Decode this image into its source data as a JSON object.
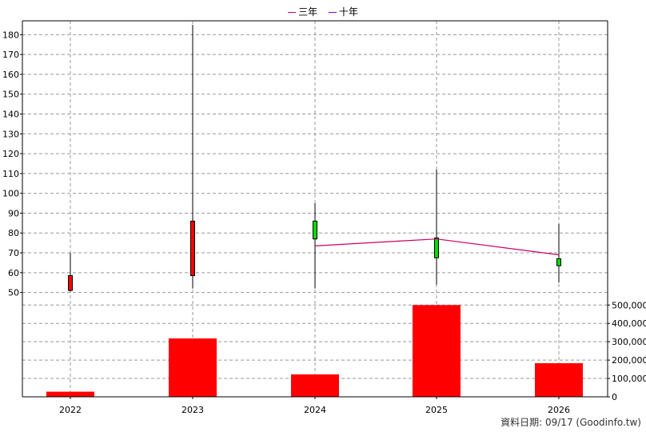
{
  "legend": [
    {
      "label": "三年",
      "color": "#cc0066"
    },
    {
      "label": "十年",
      "color": "#8800cc"
    }
  ],
  "footer": "資料日期: 09/17  (Goodinfo.tw)",
  "colors": {
    "up": "#ff0000",
    "down": "#00dd00",
    "volume": "#ff0000",
    "ma3": "#cc0066",
    "ma10": "#8800cc",
    "wick": "#000000",
    "grid": "#999999"
  },
  "chart_data": [
    {
      "type": "candlestick",
      "categories": [
        "2022",
        "2023",
        "2024",
        "2025",
        "2026"
      ],
      "ylim": [
        45,
        187
      ],
      "yticks": [
        50,
        60,
        70,
        80,
        90,
        100,
        110,
        120,
        130,
        140,
        150,
        160,
        170,
        180
      ],
      "grid": true,
      "ohlc": [
        {
          "x": "2022",
          "open": 51,
          "high": 70,
          "low": 50.5,
          "close": 58.5,
          "direction": "up"
        },
        {
          "x": "2023",
          "open": 58.5,
          "high": 185,
          "low": 52,
          "close": 86,
          "direction": "up"
        },
        {
          "x": "2024",
          "open": 86,
          "high": 95,
          "low": 52,
          "close": 77,
          "direction": "down"
        },
        {
          "x": "2025",
          "open": 77.5,
          "high": 112,
          "low": 54,
          "close": 67.5,
          "direction": "down"
        },
        {
          "x": "2026",
          "open": 67,
          "high": 84.5,
          "low": 55,
          "close": 63.5,
          "direction": "down"
        }
      ],
      "series": [
        {
          "name": "三年",
          "x": [
            "2024",
            "2025",
            "2026"
          ],
          "values": [
            73.5,
            77,
            69
          ]
        }
      ]
    },
    {
      "type": "bar",
      "categories": [
        "2022",
        "2023",
        "2024",
        "2025",
        "2026"
      ],
      "values": [
        28000,
        318000,
        122000,
        500000,
        183000
      ],
      "ylim": [
        0,
        510000
      ],
      "yticks": [
        0,
        100000,
        200000,
        300000,
        400000,
        500000
      ],
      "ytick_labels": [
        "0",
        "100,000",
        "200,000",
        "300,000",
        "400,000",
        "500,000"
      ],
      "grid": true
    }
  ]
}
